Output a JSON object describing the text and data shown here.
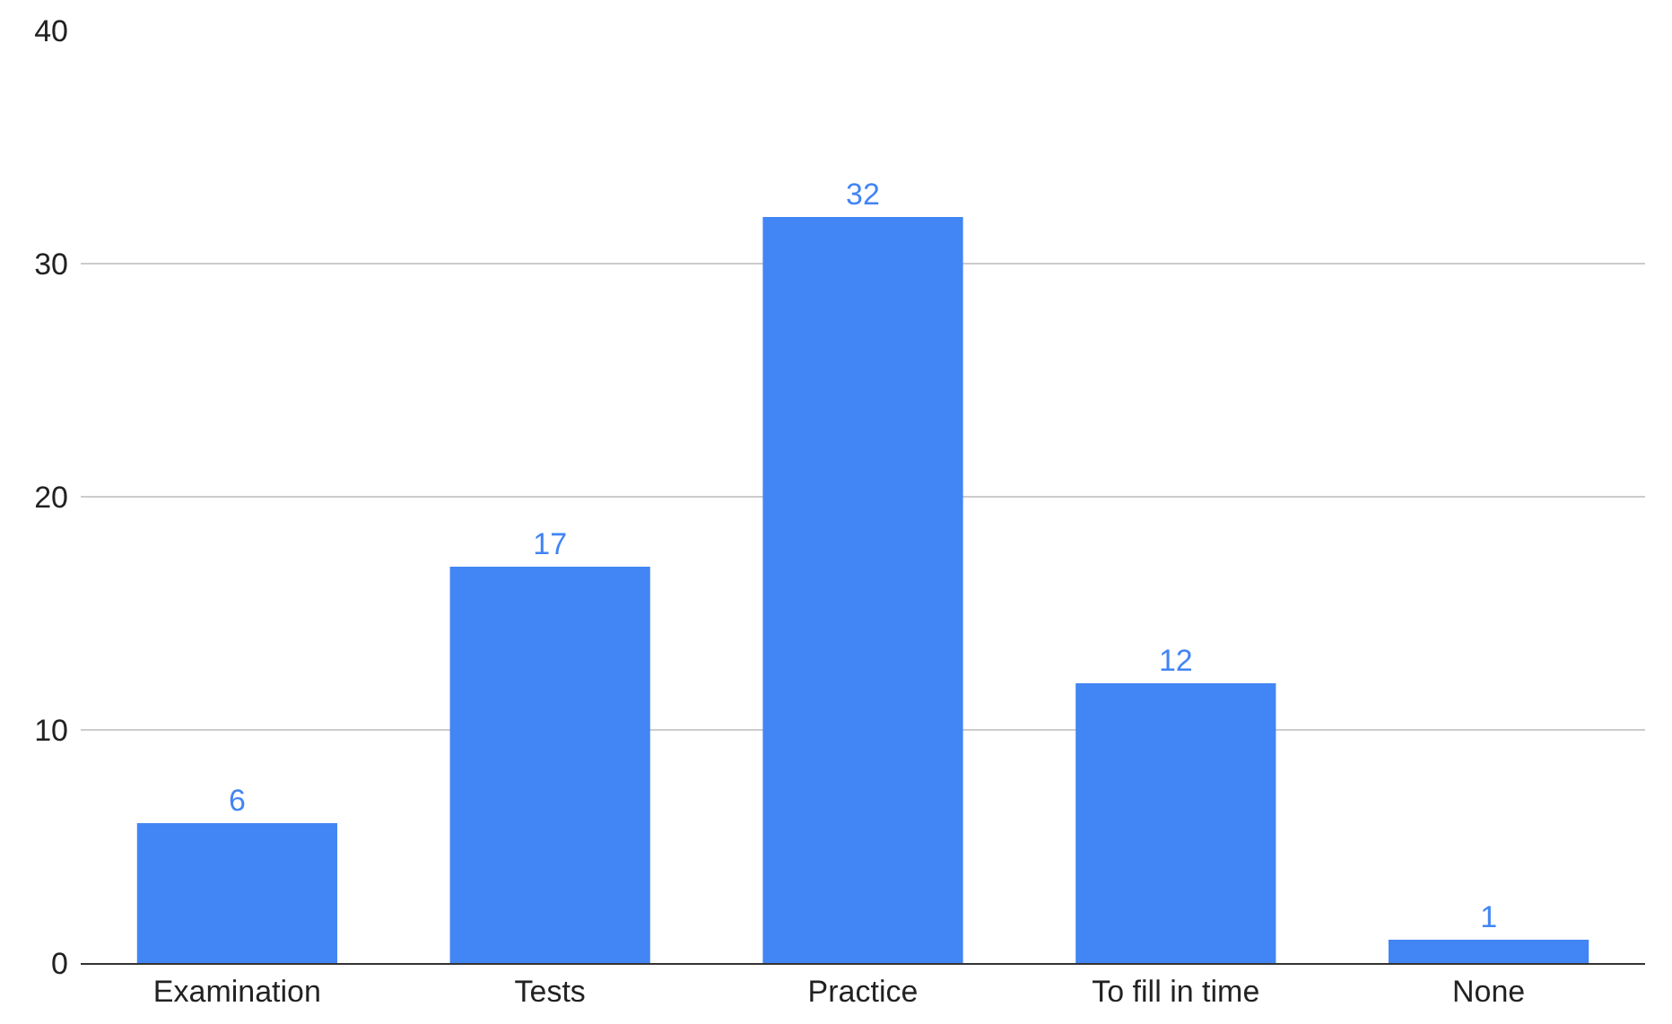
{
  "chart_data": {
    "type": "bar",
    "categories": [
      "Examination",
      "Tests",
      "Practice",
      "To fill in time",
      "None"
    ],
    "values": [
      6,
      17,
      32,
      12,
      1
    ],
    "color": "#4285f4",
    "ylim": [
      0,
      40
    ],
    "yticks": [
      0,
      10,
      20,
      30,
      40
    ],
    "grid": "y",
    "data_labels": true,
    "legend": false
  }
}
